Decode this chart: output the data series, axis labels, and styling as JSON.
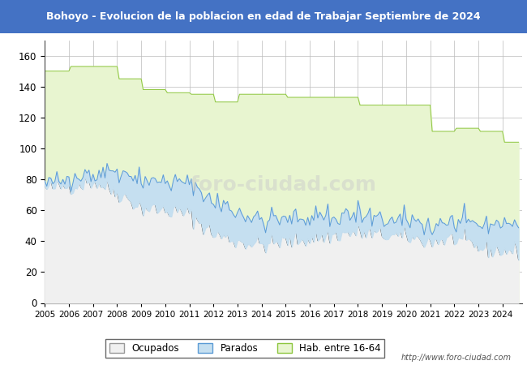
{
  "title": "Bohoyo - Evolucion de la poblacion en edad de Trabajar Septiembre de 2024",
  "title_bg": "#4472c4",
  "title_color": "#ffffff",
  "ylim": [
    0,
    170
  ],
  "yticks": [
    0,
    20,
    40,
    60,
    80,
    100,
    120,
    140,
    160
  ],
  "xlim_start": 2005,
  "xlim_end": 2024.8,
  "hab_yearly": [
    150,
    153,
    153,
    145,
    138,
    136,
    135,
    130,
    135,
    135,
    133,
    133,
    133,
    128,
    128,
    128,
    111,
    113,
    111,
    104
  ],
  "ocup_yearly": [
    74,
    76,
    79,
    72,
    62,
    60,
    58,
    45,
    40,
    38,
    40,
    42,
    44,
    46,
    44,
    43,
    40,
    42,
    36,
    34
  ],
  "parad_yearly": [
    3,
    4,
    6,
    14,
    18,
    18,
    19,
    20,
    19,
    16,
    14,
    13,
    12,
    11,
    10,
    9,
    10,
    11,
    15,
    18
  ],
  "hab_fill_color": "#e8f5d0",
  "hab_line_color": "#8dc63f",
  "ocup_fill_color": "#f0f0f0",
  "ocup_line_color": "#333333",
  "parad_fill_color": "#c5dff0",
  "parad_line_color": "#5b9bd5",
  "grid_color": "#bbbbbb",
  "watermark_text": "foro-ciudad.com",
  "watermark_color": "#aaaaaa",
  "url_text": "http://www.foro-ciudad.com",
  "legend_labels": [
    "Ocupados",
    "Parados",
    "Hab. entre 16-64"
  ],
  "noise_seed": 42
}
